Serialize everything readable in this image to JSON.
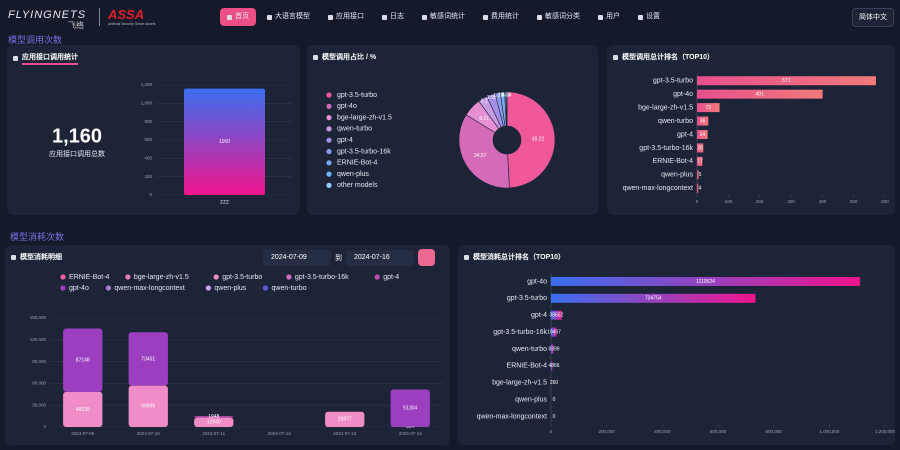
{
  "header": {
    "brand": "FLYINGNETS",
    "brand_sub": "飞络",
    "logo2": "ASSA",
    "logo2_sub": "Artificial Security Smart Assets",
    "nav": [
      "首页",
      "大语言模型",
      "应用接口",
      "日志",
      "敏感词统计",
      "费用统计",
      "敏感词分类",
      "用户",
      "设置"
    ],
    "language": "简体中文"
  },
  "sections": [
    "模型调用次数",
    "模型消耗次数"
  ],
  "chart_data": [
    {
      "type": "bar",
      "title": "应用接口调用统计",
      "total": "1,160",
      "total_label": "应用接口调用总数",
      "categories": [
        "zzz"
      ],
      "values": [
        1160
      ],
      "gradient": [
        "#f0148c",
        "#3a6ff0"
      ],
      "ylim": [
        0,
        1200
      ],
      "yticks": [
        0,
        200,
        400,
        600,
        800,
        {
          "value": 1000,
          "label": "1,000"
        },
        {
          "value": 1200,
          "label": "1,200"
        }
      ],
      "grid": true
    },
    {
      "type": "pie",
      "title": "模型调用占比 / %",
      "categories": [
        "gpt-3.5-turbo",
        "gpt-4o",
        "bge-large-zh-v1.5",
        "qwen-turbo",
        "gpt-4",
        "gpt-3.5-turbo-16k",
        "ERNIE-Bot-4",
        "qwen-plus",
        "other models"
      ],
      "values": [
        49.22,
        34.57,
        6.21,
        3.1,
        2.93,
        1.72,
        1.47,
        0.43,
        0.34
      ],
      "colors": [
        "#f0589a",
        "#d56ab8",
        "#e68fd2",
        "#c89ae2",
        "#a38ee8",
        "#8a9ce8",
        "#7aa8f0",
        "#6fb4f4",
        "#8fcff8"
      ],
      "donut": true
    },
    {
      "type": "hbar",
      "title": "模型调用总计排名（TOP10）",
      "categories": [
        "gpt-3.5-turbo",
        "gpt-4o",
        "bge-large-zh-v1.5",
        "qwen-turbo",
        "gpt-4",
        "gpt-3.5-turbo-16k",
        "ERNIE-Bot-4",
        "qwen-plus",
        "qwen-max-longcontext"
      ],
      "values": [
        571,
        401,
        72,
        36,
        34,
        20,
        17,
        5,
        4
      ],
      "gradient": [
        "#e8508e",
        "#f07a7a"
      ],
      "xlim": [
        0,
        600
      ],
      "xticks": [
        0,
        100,
        200,
        300,
        400,
        500,
        600
      ]
    },
    {
      "type": "stacked_bar",
      "title": "模型消耗明细",
      "filter": {
        "start": "2024-07-09",
        "separator": "到",
        "end": "2024-07-16"
      },
      "categories": [
        "2024-07-09",
        "2024-07-10",
        "2024-07-11",
        "2024-07-12",
        "2024-07-13",
        "2024-07-14"
      ],
      "series": [
        {
          "name": "ERNIE-Bot-4",
          "color": "#f0609e",
          "values": [
            0,
            0,
            0,
            0,
            0,
            0
          ]
        },
        {
          "name": "bge-large-zh-v1.5",
          "color": "#e87ab8",
          "values": [
            0,
            0,
            0,
            0,
            0,
            0
          ]
        },
        {
          "name": "gpt-3.5-turbo",
          "color": "#f08cc8",
          "values": [
            48339,
            56895,
            12940,
            0,
            20977,
            364
          ]
        },
        {
          "name": "gpt-3.5-turbo-16k",
          "color": "#d070c0",
          "values": [
            0,
            0,
            0,
            0,
            0,
            0
          ]
        },
        {
          "name": "gpt-4",
          "color": "#c050b0",
          "values": [
            0,
            0,
            1948,
            0,
            0,
            0
          ]
        },
        {
          "name": "gpt-4o",
          "color": "#9b3fc0",
          "values": [
            87148,
            73451,
            0,
            0,
            0,
            51304
          ]
        },
        {
          "name": "qwen-max-longcontext",
          "color": "#a77ad8",
          "values": [
            0,
            0,
            0,
            0,
            0,
            0
          ]
        },
        {
          "name": "qwen-plus",
          "color": "#c8a8f0",
          "values": [
            0,
            0,
            0,
            0,
            0,
            0
          ]
        },
        {
          "name": "qwen-turbo",
          "color": "#5b5bd8",
          "values": [
            0,
            0,
            0,
            0,
            0,
            0
          ]
        }
      ],
      "ylim": [
        0,
        150000
      ],
      "yticks": [
        0,
        {
          "value": 30000,
          "label": "30,000"
        },
        {
          "value": 60000,
          "label": "60,000"
        },
        {
          "value": 90000,
          "label": "90,000"
        },
        {
          "value": 120000,
          "label": "120,000"
        },
        {
          "value": 150000,
          "label": "150,000"
        }
      ],
      "grid": true
    },
    {
      "type": "hbar",
      "title": "模型消耗总计排名（TOP10）",
      "categories": [
        "gpt-4o",
        "gpt-3.5-turbo",
        "gpt-4",
        "gpt-3.5-turbo-16k",
        "qwen-turbo",
        "ERNIE-Bot-4",
        "bge-large-zh-v1.5",
        "qwen-plus",
        "qwen-max-longcontext"
      ],
      "values": [
        1110524,
        734754,
        38652,
        19497,
        8399,
        4866,
        260,
        0,
        0
      ],
      "gradient": [
        "#3a6ff0",
        "#f0148c"
      ],
      "xlim": [
        0,
        1200000
      ],
      "xticks": [
        0,
        {
          "value": 200000,
          "label": "200,000"
        },
        {
          "value": 400000,
          "label": "400,000"
        },
        {
          "value": 600000,
          "label": "600,000"
        },
        {
          "value": 800000,
          "label": "800,000"
        },
        {
          "value": 1000000,
          "label": "1,000,000"
        },
        {
          "value": 1200000,
          "label": "1,200,000"
        }
      ]
    }
  ]
}
